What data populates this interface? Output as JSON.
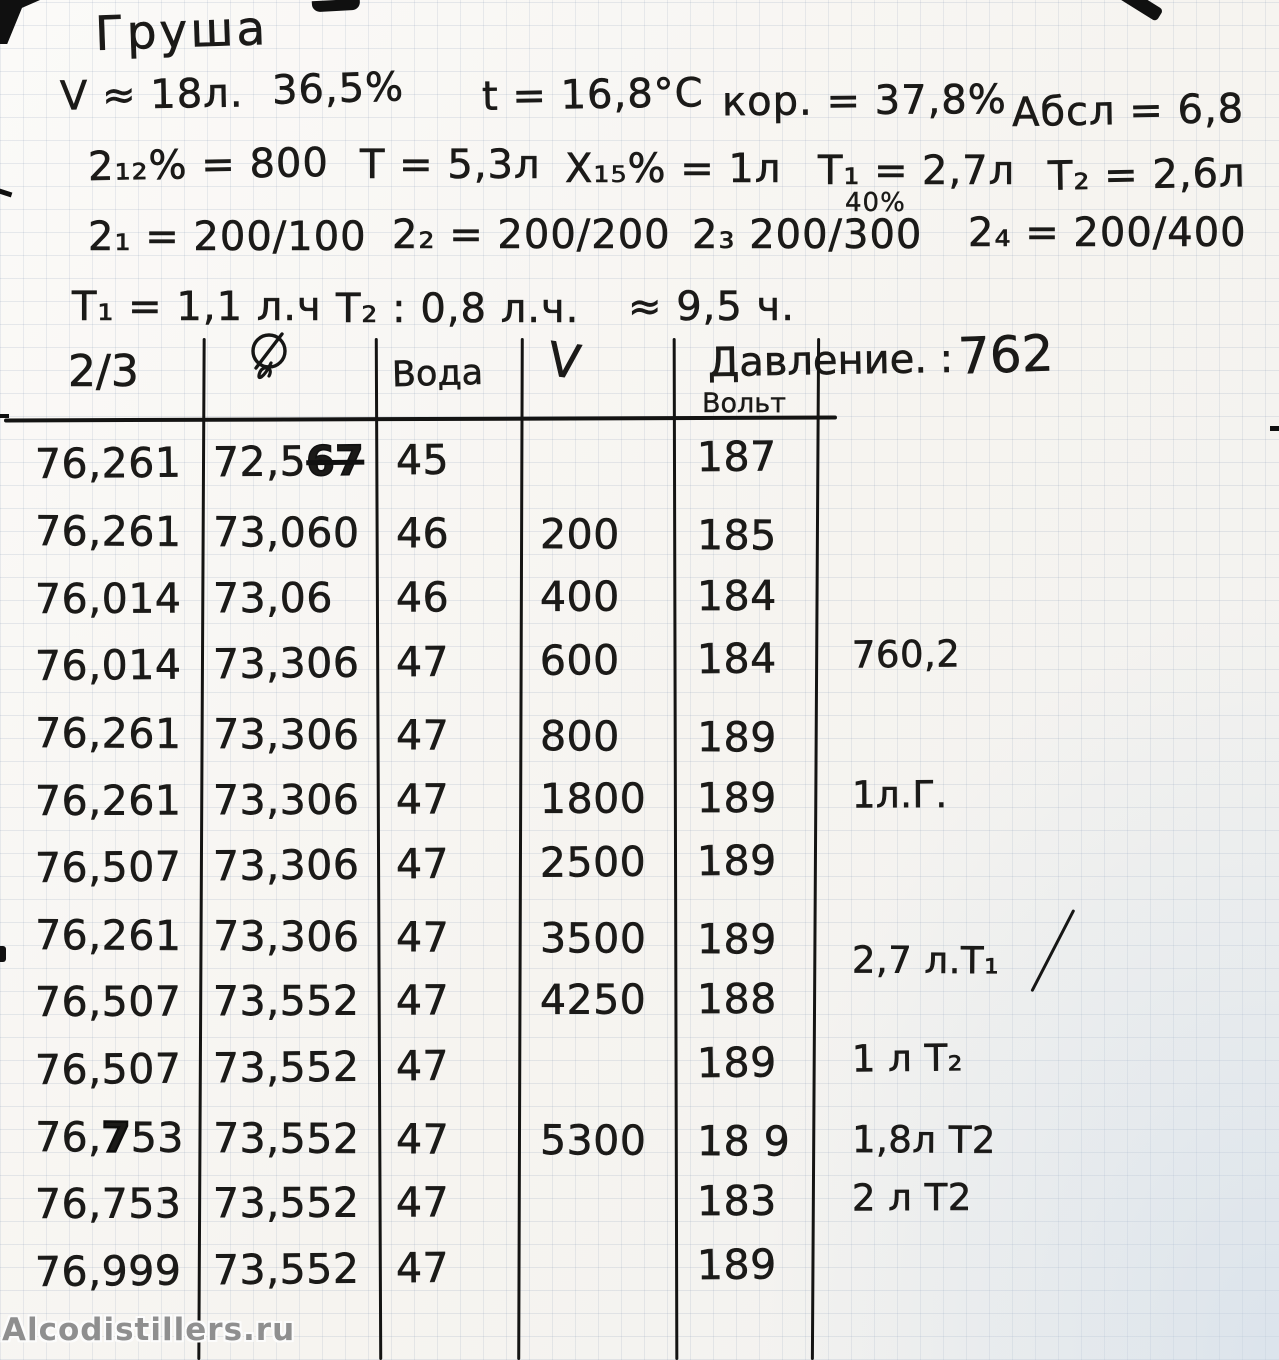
{
  "page": {
    "title": "Груша",
    "watermark": "Alcodistillers.ru"
  },
  "notes": {
    "line1": [
      "V ≈ 18л.",
      "36,5%",
      "t = 16,8°C",
      "кор. = 37,8%",
      "Абсл = 6,8"
    ],
    "line2": [
      "2₁₂% = 800",
      "Т = 5,3л",
      "Х₁₅% = 1л"
    ],
    "line2_t1": {
      "head": "Т₁ =",
      "sub": "40%",
      "tail": "2,7л"
    },
    "line2_t2": "Т₂ = 2,6л",
    "line3": [
      "2₁ = 200/100",
      "2₂ = 200/200",
      "2₃ 200/300",
      "2₄ = 200/400"
    ],
    "line4": [
      "Т₁ = 1,1 л.ч",
      "Т₂ : 0,8 л.ч.",
      "≈ 9,5 ч."
    ]
  },
  "table": {
    "headers": {
      "col1": "2/3",
      "col2_symbol": "⌀",
      "col3": "Вода",
      "col4": "V",
      "pressure_label": "Давление. :",
      "pressure_value": "762",
      "pressure_sub": "Вольт"
    },
    "rows": [
      {
        "c1": "76,261",
        "c2": "72,5",
        "c2x": "67",
        "c3": "45",
        "c4": "",
        "c5": "187",
        "note": ""
      },
      {
        "c1": "76,261",
        "c2": "73,060",
        "c2x": "",
        "c3": "46",
        "c4": "200",
        "c5": "185",
        "note": ""
      },
      {
        "c1": "76,014",
        "c2": "73,06",
        "c2x": "",
        "c3": "46",
        "c4": "400",
        "c5": "184",
        "note": ""
      },
      {
        "c1": "76,014",
        "c2": "73,306",
        "c2x": "",
        "c3": "47",
        "c4": "600",
        "c5": "184",
        "note": "760,2"
      },
      {
        "c1": "76,261",
        "c2": "73,306",
        "c2x": "",
        "c3": "47",
        "c4": "800",
        "c5": "189",
        "note": ""
      },
      {
        "c1": "76,261",
        "c2": "73,306",
        "c2x": "",
        "c3": "47",
        "c4": "1800",
        "c5": "189",
        "note": "1л.Г."
      },
      {
        "c1": "76,507",
        "c2": "73,306",
        "c2x": "",
        "c3": "47",
        "c4": "2500",
        "c5": "189",
        "note": ""
      },
      {
        "c1": "76,261",
        "c2": "73,306",
        "c2x": "",
        "c3": "47",
        "c4": "3500",
        "c5": "189",
        "note": "2,7 л.Т₁",
        "slash": true
      },
      {
        "c1": "76,507",
        "c2": "73,552",
        "c2x": "",
        "c3": "47",
        "c4": "4250",
        "c5": "188",
        "note": ""
      },
      {
        "c1": "76,507",
        "c2": "73,552",
        "c2x": "",
        "c3": "47",
        "c4": "",
        "c5": "189",
        "note": "1 л Т₂"
      },
      {
        "c1": "76,",
        "c1b": "7",
        "c1r": "53",
        "c2": "73,552",
        "c2x": "",
        "c3": "47",
        "c4": "5300",
        "c5": "18 9",
        "note": "1,8л Т2"
      },
      {
        "c1": "76,753",
        "c2": "73,552",
        "c2x": "",
        "c3": "47",
        "c4": "",
        "c5": "183",
        "note": "2 л Т2"
      },
      {
        "c1": "76,999",
        "c2": "73,552",
        "c2x": "",
        "c3": "47",
        "c4": "",
        "c5": "189",
        "note": ""
      }
    ]
  }
}
